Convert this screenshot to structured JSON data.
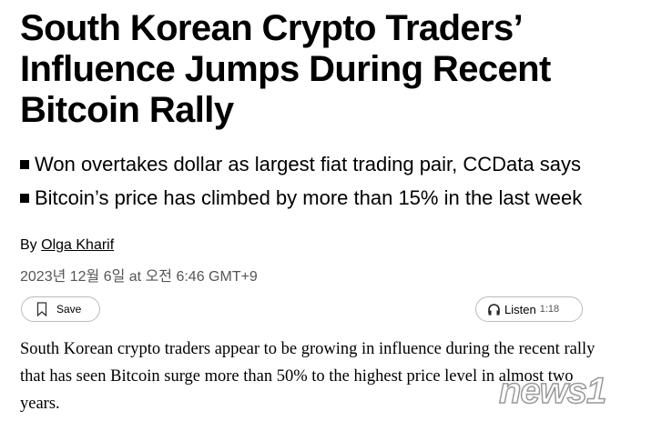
{
  "headline": "South Korean Crypto Traders’ Influence Jumps During Recent Bitcoin Rally",
  "bullets": [
    "Won overtakes dollar as largest fiat trading pair, CCData says",
    "Bitcoin’s price has climbed by more than 15% in the last week"
  ],
  "byline": {
    "prefix": "By",
    "author": "Olga Kharif"
  },
  "date": "2023년 12월 6일 at 오전 6:46 GMT+9",
  "actions": {
    "save_label": "Save",
    "listen_label": "Listen",
    "listen_duration": "1:18"
  },
  "body": "South Korean crypto traders appear to be growing in influence during the recent rally that has seen Bitcoin surge more than 50% to the highest price level in almost two years.",
  "watermark": "news1"
}
